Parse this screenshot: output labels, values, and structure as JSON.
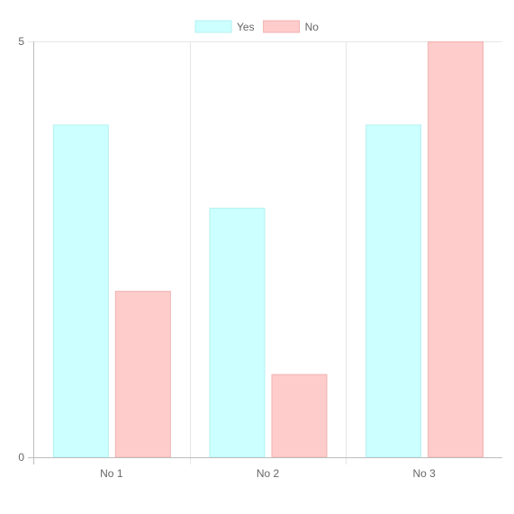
{
  "chart_data": {
    "type": "bar",
    "categories": [
      "No 1",
      "No 2",
      "No 3"
    ],
    "series": [
      {
        "name": "Yes",
        "values": [
          4,
          3,
          4
        ],
        "fill": "#ccffff",
        "stroke": "#b3f0f0"
      },
      {
        "name": "No",
        "values": [
          2,
          1,
          5
        ],
        "fill": "#ffcccc",
        "stroke": "#f0b0b0"
      }
    ],
    "ylim": [
      0,
      5
    ],
    "yticks": [
      "0",
      "5"
    ],
    "legend_position": "top",
    "grid": true
  },
  "colors": {
    "grid": "#e6e6e6",
    "axis": "#bdbdbd",
    "text": "#666666"
  }
}
